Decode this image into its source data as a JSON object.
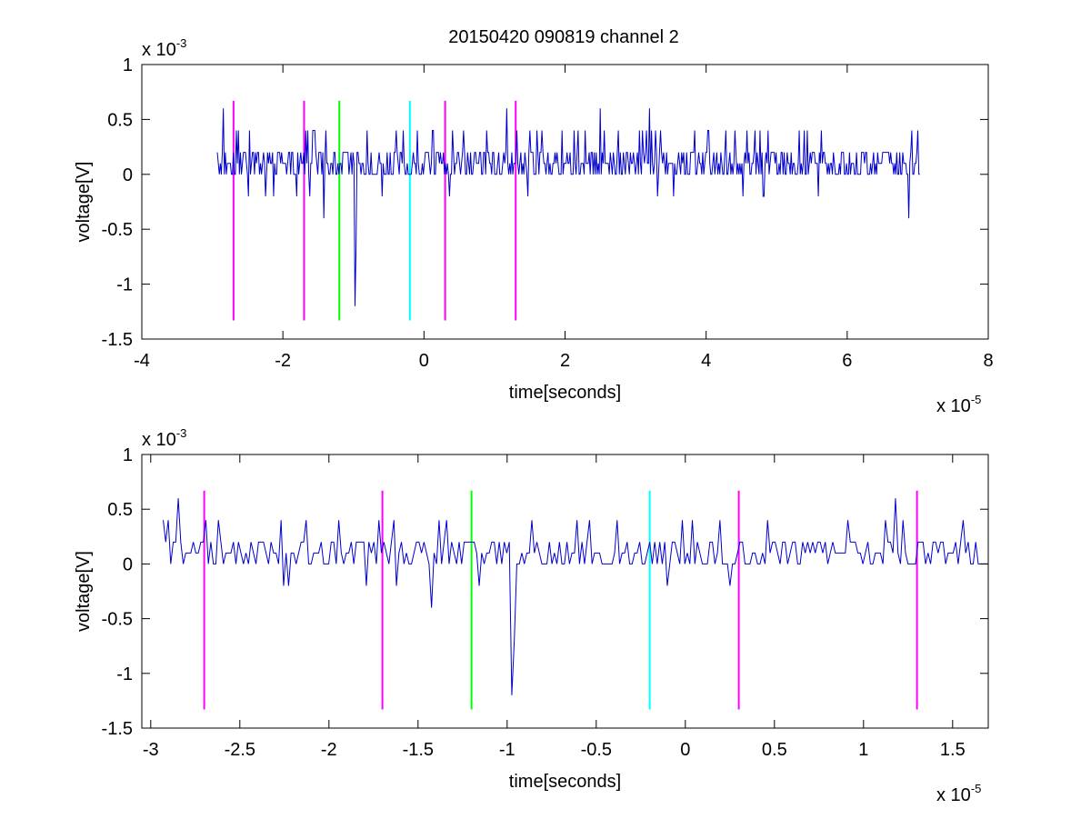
{
  "figure": {
    "title": "20150420 090819 channel 2"
  },
  "chart_data": [
    {
      "type": "line",
      "title": "20150420 090819 channel 2",
      "xlabel": "time[seconds]",
      "ylabel": "voltage[V]",
      "x_exponent_label": "x 10",
      "x_exponent_power": "-5",
      "y_exponent_label": "x 10",
      "y_exponent_power": "-3",
      "xlim": [
        -4,
        8
      ],
      "ylim": [
        -1.5,
        1
      ],
      "xticks": [
        -4,
        -2,
        0,
        2,
        4,
        6,
        8
      ],
      "xtick_labels": [
        "-4",
        "-2",
        "0",
        "2",
        "4",
        "6",
        "8"
      ],
      "yticks": [
        -1.5,
        -1,
        -0.5,
        0,
        0.5,
        1
      ],
      "ytick_labels": [
        "-1.5",
        "-1",
        "-0.5",
        "0",
        "0.5",
        "1"
      ],
      "grid": false,
      "signal": {
        "color": "#0000cc",
        "x_start": -2.93,
        "x_end": 7.03,
        "points": 700,
        "baseline_levels": [
          0,
          0.1,
          0.2
        ],
        "spikes": [
          {
            "x": -2.85,
            "y": 0.6
          },
          {
            "x": -2.25,
            "y": -0.2
          },
          {
            "x": -1.62,
            "y": -0.2
          },
          {
            "x": -1.42,
            "y": -0.4
          },
          {
            "x": -0.98,
            "y": -1.2
          },
          {
            "x": -0.96,
            "y": -0.7
          },
          {
            "x": 1.18,
            "y": 0.6
          },
          {
            "x": 2.5,
            "y": 0.6
          },
          {
            "x": 3.2,
            "y": 0.6
          },
          {
            "x": 6.88,
            "y": -0.4
          }
        ]
      },
      "markers": [
        {
          "x": -2.7,
          "color": "#ff00ff"
        },
        {
          "x": -1.7,
          "color": "#ff00ff"
        },
        {
          "x": -1.2,
          "color": "#00ff00"
        },
        {
          "x": -0.2,
          "color": "#00ffff"
        },
        {
          "x": 0.3,
          "color": "#ff00ff"
        },
        {
          "x": 1.3,
          "color": "#ff00ff"
        }
      ],
      "marker_range": [
        -1.33,
        0.67
      ]
    },
    {
      "type": "line",
      "xlabel": "time[seconds]",
      "ylabel": "voltage[V]",
      "x_exponent_label": "x 10",
      "x_exponent_power": "-5",
      "y_exponent_label": "x 10",
      "y_exponent_power": "-3",
      "xlim": [
        -3.05,
        1.7
      ],
      "ylim": [
        -1.5,
        1
      ],
      "xticks": [
        -3,
        -2.5,
        -2,
        -1.5,
        -1,
        -0.5,
        0,
        0.5,
        1,
        1.5
      ],
      "xtick_labels": [
        "-3",
        "-2.5",
        "-2",
        "-1.5",
        "-1",
        "-0.5",
        "0",
        "0.5",
        "1",
        "1.5"
      ],
      "yticks": [
        -1.5,
        -1,
        -0.5,
        0,
        0.5,
        1
      ],
      "ytick_labels": [
        "-1.5",
        "-1",
        "-0.5",
        "0",
        "0.5",
        "1"
      ],
      "grid": false,
      "signal": {
        "color": "#0000cc",
        "x_start": -2.93,
        "x_end": 1.7,
        "points": 330,
        "baseline_levels": [
          0,
          0.1,
          0.2
        ],
        "spikes": [
          {
            "x": -2.85,
            "y": 0.6
          },
          {
            "x": -2.25,
            "y": -0.2
          },
          {
            "x": -2.22,
            "y": -0.2
          },
          {
            "x": -1.42,
            "y": -0.4
          },
          {
            "x": -0.98,
            "y": -1.2
          },
          {
            "x": -0.96,
            "y": -0.7
          },
          {
            "x": 1.18,
            "y": 0.6
          }
        ]
      },
      "markers": [
        {
          "x": -2.7,
          "color": "#ff00ff"
        },
        {
          "x": -1.7,
          "color": "#ff00ff"
        },
        {
          "x": -1.2,
          "color": "#00ff00"
        },
        {
          "x": -0.2,
          "color": "#00ffff"
        },
        {
          "x": 0.3,
          "color": "#ff00ff"
        },
        {
          "x": 1.3,
          "color": "#ff00ff"
        }
      ],
      "marker_range": [
        -1.33,
        0.67
      ]
    }
  ]
}
